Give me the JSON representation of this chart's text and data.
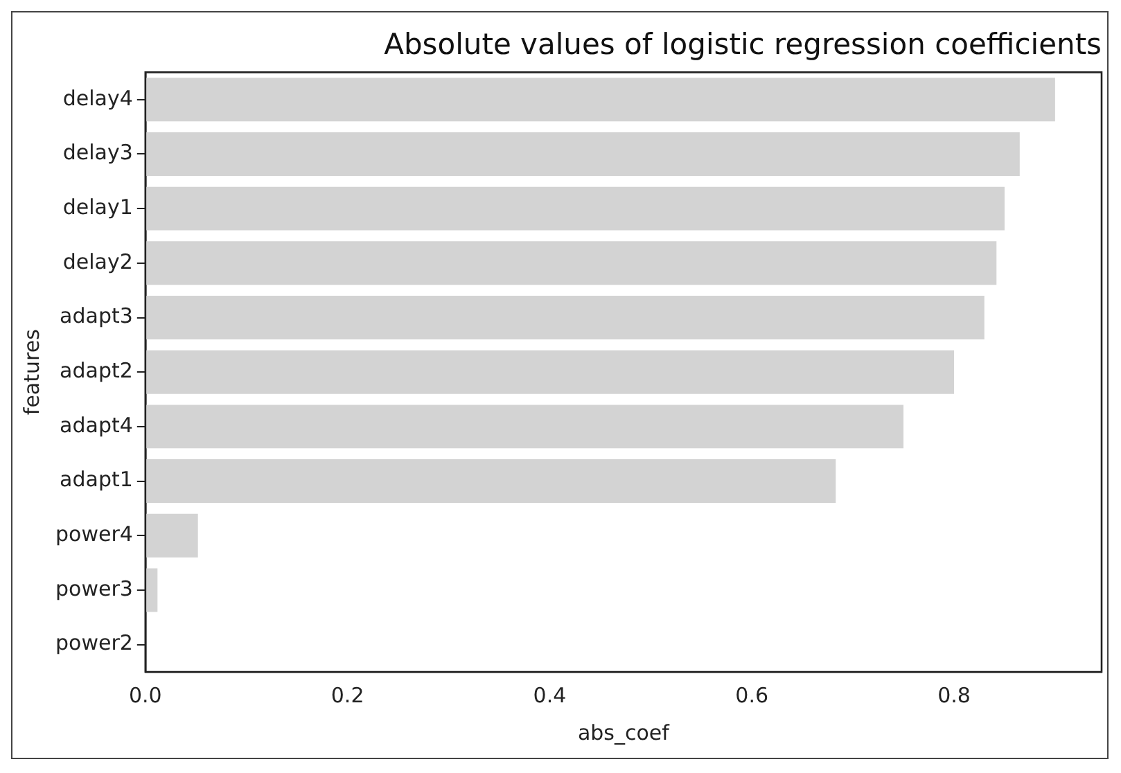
{
  "chart_data": {
    "type": "bar",
    "orientation": "horizontal",
    "title": "Absolute values of logistic regression coefficients",
    "xlabel": "abs_coef",
    "ylabel": "features",
    "categories": [
      "delay4",
      "delay3",
      "delay1",
      "delay2",
      "adapt3",
      "adapt2",
      "adapt4",
      "adapt1",
      "power4",
      "power3",
      "power2"
    ],
    "values": [
      0.9,
      0.865,
      0.85,
      0.842,
      0.83,
      0.8,
      0.75,
      0.683,
      0.052,
      0.012,
      0
    ],
    "color": "#d3d3d3",
    "xlim": [
      0,
      0.946
    ],
    "xticks": [
      {
        "value": 0,
        "label": "0.0"
      },
      {
        "value": 0.2,
        "label": "0.2"
      },
      {
        "value": 0.4,
        "label": "0.4"
      },
      {
        "value": 0.6,
        "label": "0.6"
      },
      {
        "value": 0.8,
        "label": "0.8"
      }
    ],
    "grid": false,
    "legend": false
  }
}
